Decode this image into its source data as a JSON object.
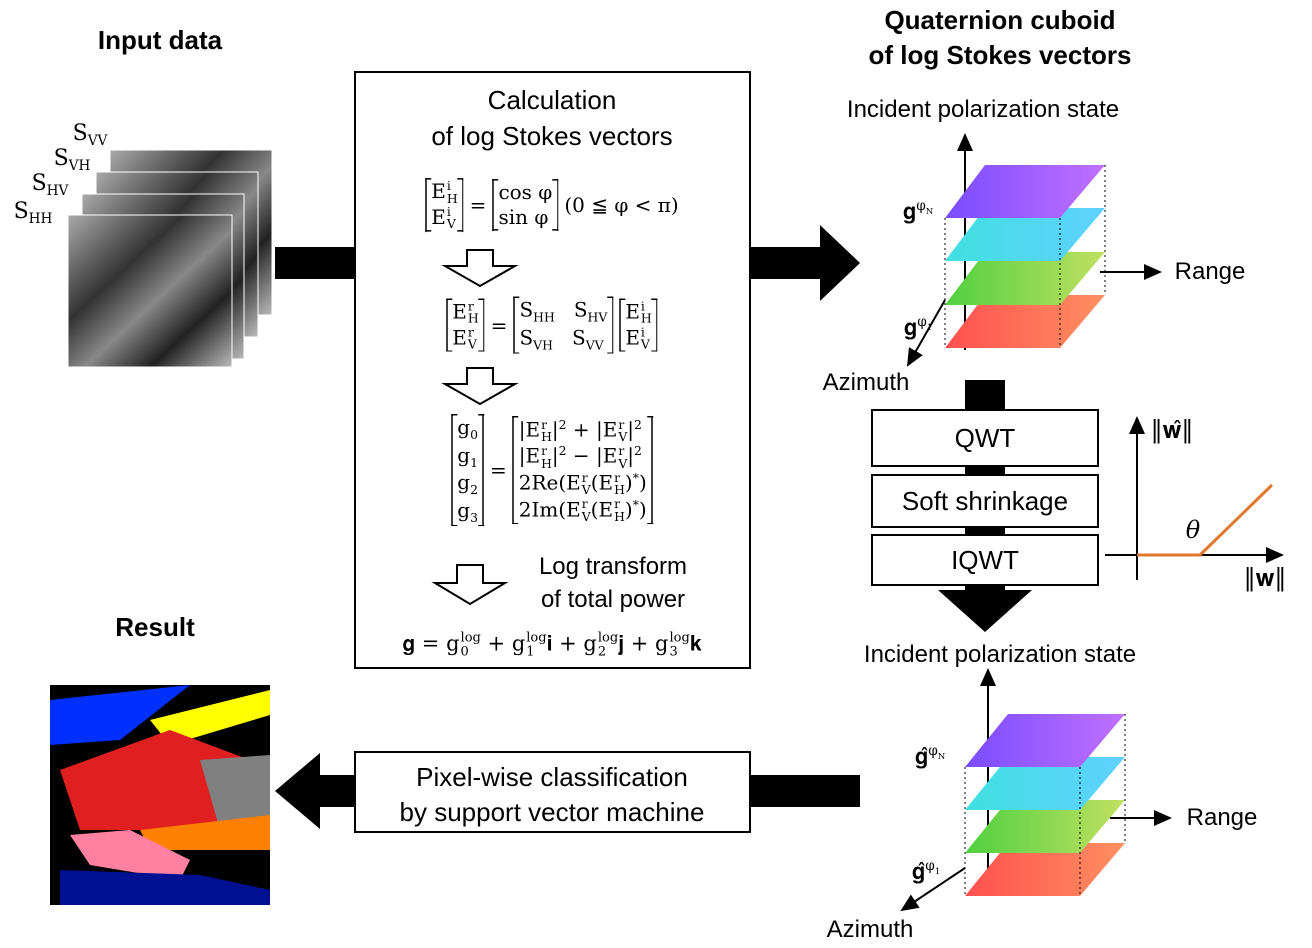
{
  "input_title": "Input data",
  "input_channels": [
    "S_{VV}",
    "S_{VH}",
    "S_{HV}",
    "S_{HH}"
  ],
  "calc_title": [
    "Calculation",
    "of log Stokes vectors"
  ],
  "equations": [
    [
      [
        "E_{H}^{i}",
        "E_{V}^{i}"
      ],
      "=",
      [
        "cos φ",
        "sin φ"
      ],
      "(0 ≦ φ < π)"
    ],
    [
      [
        "E_{H}^{r}",
        "E_{V}^{r}"
      ],
      "=",
      [
        "S_{HH}   S_{HV}",
        "S_{VH}   S_{VV}"
      ],
      [
        "E_{H}^{i}",
        "E_{V}^{i}"
      ]
    ],
    [
      [
        "g_{0}",
        "g_{1}",
        "g_{2}",
        "g_{3}"
      ],
      "=",
      [
        "|E_{H}^{r}|^{2} + |E_{V}^{r}|^{2}",
        "|E_{H}^{r}|^{2} − |E_{V}^{r}|^{2}",
        "2Re(E_{V}^{r}(E_{H}^{r})^{*})",
        "2Im(E_{V}^{r}(E_{H}^{r})^{*})"
      ]
    ],
    [
      "𝐠 = g_{0}^{log} + g_{1}^{log}𝐢 + g_{2}^{log}𝐣 + g_{3}^{log}𝐤"
    ]
  ],
  "log_transform": [
    "Log transform",
    "of total power"
  ],
  "cuboid_title": [
    "Quaternion cuboid",
    "of log Stokes vectors"
  ],
  "cuboid_top": {
    "axis_vertical": "Incident polarization state",
    "axis_range": "Range",
    "axis_azimuth": "Azimuth",
    "layer_top": "𝐠^{φ_N}",
    "layer_bottom": "𝐠^{φ_1}"
  },
  "steps": [
    "QWT",
    "Soft shrinkage",
    "IQWT"
  ],
  "plot": {
    "y_label": "‖𝐰̂‖",
    "x_label": "‖𝐰‖",
    "threshold": "θ"
  },
  "cuboid_bottom": {
    "axis_vertical": "Incident polarization state",
    "axis_range": "Range",
    "axis_azimuth": "Azimuth",
    "layer_top": "𝐠̂^{φ_N}",
    "layer_bottom": "𝐠̂^{φ_1}"
  },
  "classification": [
    "Pixel-wise classification",
    "by support vector machine"
  ],
  "result_title": "Result"
}
